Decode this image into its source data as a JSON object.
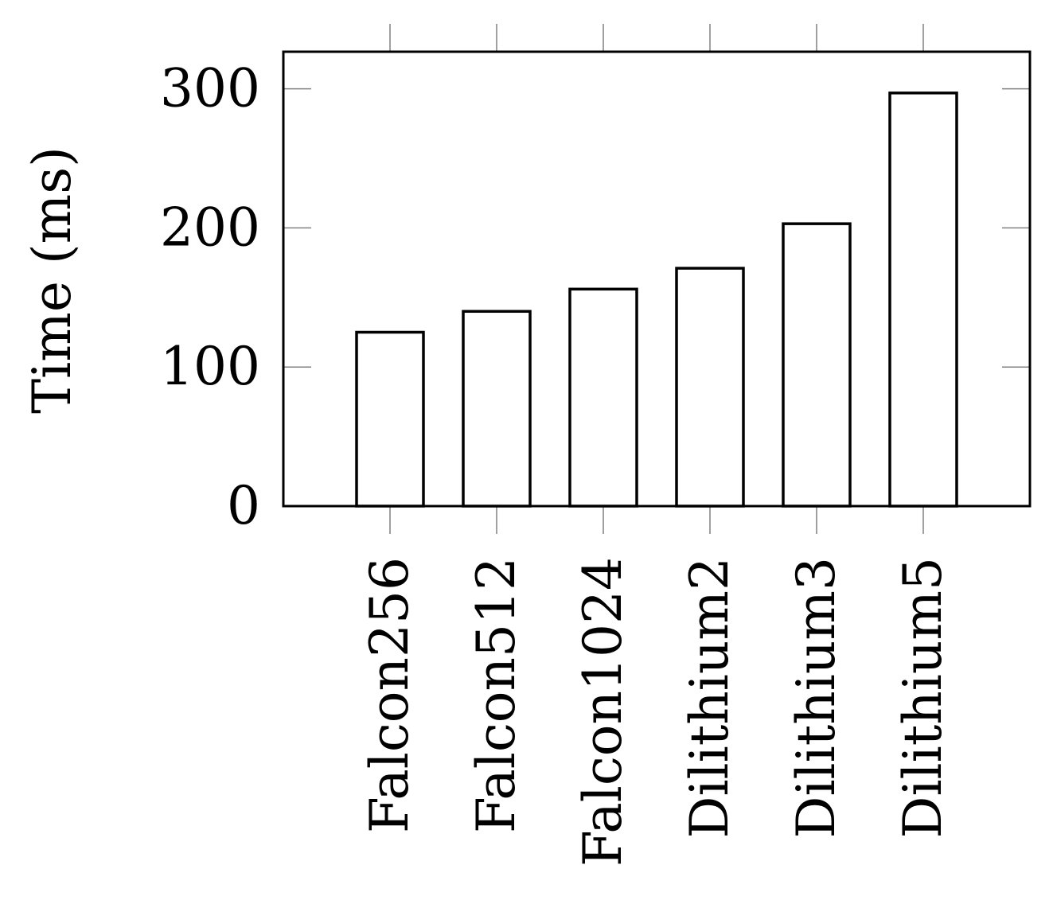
{
  "chart_data": {
    "type": "bar",
    "title": "",
    "xlabel": "",
    "ylabel": "Time (ms)",
    "categories": [
      "Falcon256",
      "Falcon512",
      "Falcon1024",
      "Dilithium2",
      "Dilithium3",
      "Dilithium5"
    ],
    "values": [
      125,
      140,
      156,
      171,
      203,
      297
    ],
    "ylim": [
      0,
      327
    ],
    "yticks": [
      0,
      100,
      200,
      300
    ],
    "ytick_labels": [
      "0",
      "100",
      "200",
      "300"
    ],
    "grid": false,
    "legend": "none",
    "bar_fill": "#ffffff",
    "bar_stroke": "#000000",
    "axis_color": "#000000",
    "tick_color": "#808080"
  }
}
